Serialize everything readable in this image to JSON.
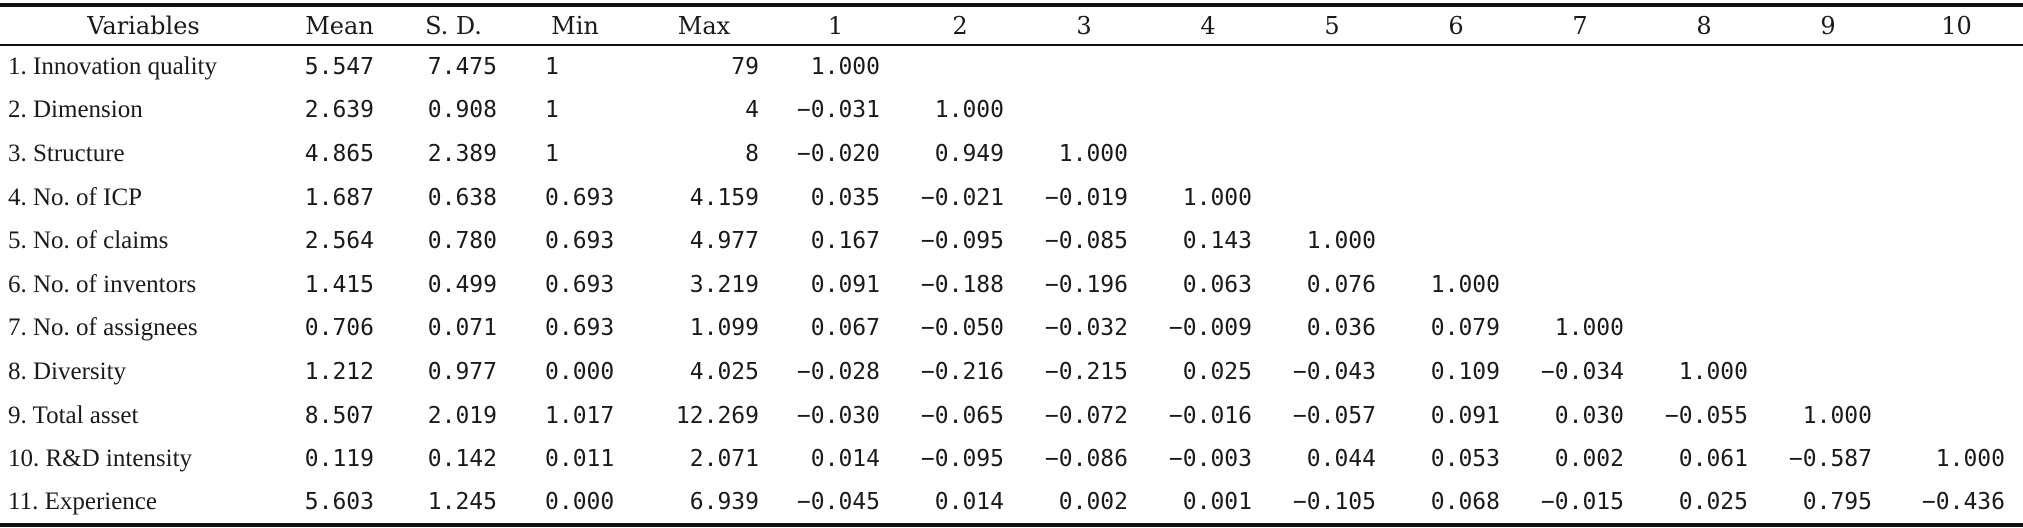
{
  "table": {
    "headers": [
      "Variables",
      "Mean",
      "S. D.",
      "Min",
      "Max",
      "1",
      "2",
      "3",
      "4",
      "5",
      "6",
      "7",
      "8",
      "9",
      "10"
    ],
    "rows": [
      {
        "variable": "1. Innovation quality",
        "mean": "5.547",
        "sd": "7.475",
        "min": "1",
        "max": "79",
        "corr": [
          "1.000",
          "",
          "",
          "",
          "",
          "",
          "",
          "",
          "",
          ""
        ]
      },
      {
        "variable": "2. Dimension",
        "mean": "2.639",
        "sd": "0.908",
        "min": "1",
        "max": "4",
        "corr": [
          "−0.031",
          "1.000",
          "",
          "",
          "",
          "",
          "",
          "",
          "",
          ""
        ]
      },
      {
        "variable": "3. Structure",
        "mean": "4.865",
        "sd": "2.389",
        "min": "1",
        "max": "8",
        "corr": [
          "−0.020",
          "0.949",
          "1.000",
          "",
          "",
          "",
          "",
          "",
          "",
          ""
        ]
      },
      {
        "variable": "4. No. of ICP",
        "mean": "1.687",
        "sd": "0.638",
        "min": "0.693",
        "max": "4.159",
        "corr": [
          "0.035",
          "−0.021",
          "−0.019",
          "1.000",
          "",
          "",
          "",
          "",
          "",
          ""
        ]
      },
      {
        "variable": "5. No. of claims",
        "mean": "2.564",
        "sd": "0.780",
        "min": "0.693",
        "max": "4.977",
        "corr": [
          "0.167",
          "−0.095",
          "−0.085",
          "0.143",
          "1.000",
          "",
          "",
          "",
          "",
          ""
        ]
      },
      {
        "variable": "6. No. of inventors",
        "mean": "1.415",
        "sd": "0.499",
        "min": "0.693",
        "max": "3.219",
        "corr": [
          "0.091",
          "−0.188",
          "−0.196",
          "0.063",
          "0.076",
          "1.000",
          "",
          "",
          "",
          ""
        ]
      },
      {
        "variable": "7. No. of assignees",
        "mean": "0.706",
        "sd": "0.071",
        "min": "0.693",
        "max": "1.099",
        "corr": [
          "0.067",
          "−0.050",
          "−0.032",
          "−0.009",
          "0.036",
          "0.079",
          "1.000",
          "",
          "",
          ""
        ]
      },
      {
        "variable": "8. Diversity",
        "mean": "1.212",
        "sd": "0.977",
        "min": "0.000",
        "max": "4.025",
        "corr": [
          "−0.028",
          "−0.216",
          "−0.215",
          "0.025",
          "−0.043",
          "0.109",
          "−0.034",
          "1.000",
          "",
          ""
        ]
      },
      {
        "variable": "9. Total asset",
        "mean": "8.507",
        "sd": "2.019",
        "min": "1.017",
        "max": "12.269",
        "corr": [
          "−0.030",
          "−0.065",
          "−0.072",
          "−0.016",
          "−0.057",
          "0.091",
          "0.030",
          "−0.055",
          "1.000",
          ""
        ]
      },
      {
        "variable": "10. R&D intensity",
        "mean": "0.119",
        "sd": "0.142",
        "min": "0.011",
        "max": "2.071",
        "corr": [
          "0.014",
          "−0.095",
          "−0.086",
          "−0.003",
          "0.044",
          "0.053",
          "0.002",
          "0.061",
          "−0.587",
          "1.000"
        ]
      },
      {
        "variable": "11. Experience",
        "mean": "5.603",
        "sd": "1.245",
        "min": "0.000",
        "max": "6.939",
        "corr": [
          "−0.045",
          "0.014",
          "0.002",
          "0.001",
          "−0.105",
          "0.068",
          "−0.015",
          "0.025",
          "0.795",
          "−0.436"
        ]
      }
    ]
  }
}
